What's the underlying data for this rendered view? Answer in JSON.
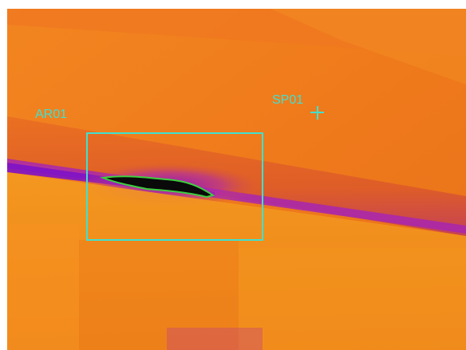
{
  "image": {
    "kind": "thermal-camera-frame",
    "palette": "iron",
    "colors": {
      "background": "#f07a1c",
      "warm_band": "#f5901e",
      "cool_purple": "#a01ec8",
      "coldest": "#0a0a0a",
      "isotherm": "#3ecf3e",
      "overlay": "#3fe0d0"
    }
  },
  "overlays": {
    "area_label": "AR01",
    "spot_label": "SP01",
    "area_tool": "rectangle",
    "spot_tool": "crosshair"
  }
}
